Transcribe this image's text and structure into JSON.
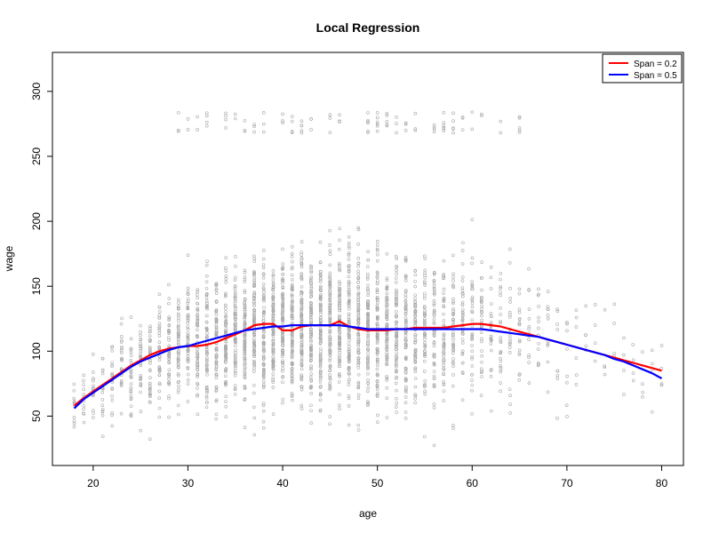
{
  "chart_data": {
    "type": "scatter",
    "title": "Local Regression",
    "xlabel": "age",
    "ylabel": "wage",
    "xlim": [
      15.7,
      82.3
    ],
    "ylim": [
      12,
      330
    ],
    "xticks": [
      20,
      30,
      40,
      50,
      60,
      70,
      80
    ],
    "yticks": [
      50,
      100,
      150,
      200,
      250,
      300
    ],
    "grid": false,
    "legend_position": "top-right",
    "scatter": {
      "name": "",
      "color": "#a9a9a9",
      "description_points": "individual observations",
      "x_range": [
        18,
        80
      ]
    },
    "series": [
      {
        "name": "Span = 0.2",
        "color": "#ff0000",
        "x": [
          18,
          19,
          20,
          21,
          22,
          23,
          24,
          25,
          26,
          27,
          28,
          29,
          30,
          31,
          32,
          33,
          34,
          35,
          36,
          37,
          38,
          39,
          40,
          41,
          42,
          43,
          44,
          45,
          46,
          47,
          48,
          49,
          50,
          51,
          52,
          53,
          54,
          55,
          56,
          57,
          58,
          59,
          60,
          61,
          62,
          63,
          64,
          65,
          66,
          67,
          68,
          69,
          70,
          71,
          72,
          73,
          74,
          75,
          76,
          77,
          78,
          79,
          80
        ],
        "y": [
          58,
          64,
          69,
          74,
          79,
          84,
          89,
          93,
          97,
          100,
          102,
          103,
          104,
          104,
          105,
          107,
          110,
          113,
          116,
          120,
          121,
          121,
          116,
          116,
          119,
          120,
          120,
          120,
          123,
          119,
          117,
          116,
          116,
          116,
          117,
          117,
          118,
          118,
          118,
          118,
          119,
          120,
          121,
          121,
          120,
          119,
          117,
          115,
          113,
          111,
          109,
          107,
          105,
          103,
          101,
          99,
          97,
          95,
          93,
          91,
          89,
          87,
          85
        ]
      },
      {
        "name": "Span = 0.5",
        "color": "#0000ff",
        "x": [
          18,
          19,
          20,
          21,
          22,
          23,
          24,
          25,
          26,
          27,
          28,
          29,
          30,
          31,
          32,
          33,
          34,
          35,
          36,
          37,
          38,
          39,
          40,
          41,
          42,
          43,
          44,
          45,
          46,
          47,
          48,
          49,
          50,
          51,
          52,
          53,
          54,
          55,
          56,
          57,
          58,
          59,
          60,
          61,
          62,
          63,
          64,
          65,
          66,
          67,
          68,
          69,
          70,
          71,
          72,
          73,
          74,
          75,
          76,
          77,
          78,
          79,
          80
        ],
        "y": [
          56,
          63,
          68,
          73,
          78,
          83,
          88,
          92,
          95,
          98,
          101,
          103,
          104,
          106,
          108,
          110,
          112,
          114,
          116,
          117,
          118,
          119,
          119,
          120,
          120,
          120,
          120,
          120,
          120,
          119,
          118,
          117,
          117,
          117,
          117,
          117,
          117,
          117,
          117,
          117,
          117,
          117,
          117,
          117,
          116,
          115,
          114,
          113,
          112,
          111,
          109,
          107,
          105,
          103,
          101,
          99,
          97,
          94,
          92,
          89,
          86,
          83,
          79
        ]
      }
    ]
  }
}
